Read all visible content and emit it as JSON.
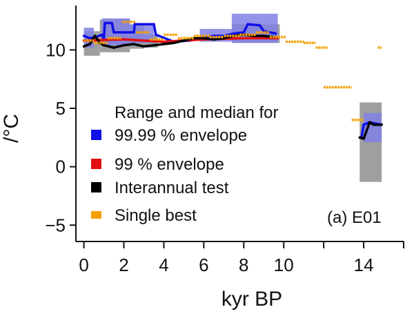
{
  "chart_data": {
    "type": "line",
    "title": "",
    "xlabel": "kyr BP",
    "ylabel": "/°C",
    "xlim": [
      -0.4,
      16.0
    ],
    "ylim": [
      -6.4,
      13.8
    ],
    "xticks": [
      0,
      2,
      4,
      6,
      8,
      10,
      14
    ],
    "xtick_labels": [
      "0",
      "2",
      "4",
      "6",
      "8",
      "10",
      "14"
    ],
    "extra_x_ticks": [
      12,
      16
    ],
    "yticks": [
      -5,
      0,
      5,
      10
    ],
    "ytick_labels": [
      "−5",
      "0",
      "5",
      "10"
    ],
    "panel_label": "(a) E01",
    "legend": {
      "title": "Range and median for",
      "placement": "lower-left",
      "entries": [
        {
          "label": "99.99 % envelope",
          "color": "#1010e8"
        },
        {
          "label": "99 % envelope",
          "color": "#e01010"
        },
        {
          "label": "Interannual test",
          "color": "#000000"
        },
        {
          "label": "Single best",
          "color": "#f5a000"
        }
      ]
    },
    "range_bands": [
      {
        "series": "Interannual test",
        "color": "#9a9a9a",
        "x0": 0.0,
        "x1": 0.8,
        "lo": 9.5,
        "hi": 11.6
      },
      {
        "series": "Interannual test",
        "color": "#9a9a9a",
        "x0": 0.8,
        "x1": 2.3,
        "lo": 9.8,
        "hi": 12.6
      },
      {
        "series": "Interannual test",
        "color": "#9a9a9a",
        "x0": 2.3,
        "x1": 3.0,
        "lo": 10.1,
        "hi": 12.1
      },
      {
        "series": "Interannual test",
        "color": "#9a9a9a",
        "x0": 3.0,
        "x1": 3.7,
        "lo": 10.2,
        "hi": 11.3
      },
      {
        "series": "Interannual test",
        "color": "#9a9a9a",
        "x0": 7.4,
        "x1": 9.8,
        "lo": 10.6,
        "hi": 12.2
      },
      {
        "series": "Interannual test",
        "color": "#9a9a9a",
        "x0": 13.8,
        "x1": 14.9,
        "lo": -1.3,
        "hi": 5.5
      },
      {
        "series": "99.99 % envelope",
        "color": "#8080e6",
        "x0": 0.0,
        "x1": 0.5,
        "lo": 10.2,
        "hi": 11.9
      },
      {
        "series": "99.99 % envelope",
        "color": "#8080e6",
        "x0": 0.9,
        "x1": 2.3,
        "lo": 10.4,
        "hi": 12.7
      },
      {
        "series": "99.99 % envelope",
        "color": "#8080e6",
        "x0": 2.3,
        "x1": 3.5,
        "lo": 10.6,
        "hi": 12.2
      },
      {
        "series": "99.99 % envelope",
        "color": "#8080e6",
        "x0": 5.8,
        "x1": 7.4,
        "lo": 10.7,
        "hi": 11.8
      },
      {
        "series": "99.99 % envelope",
        "color": "#8080e6",
        "x0": 7.4,
        "x1": 9.7,
        "lo": 10.6,
        "hi": 13.1
      },
      {
        "series": "99.99 % envelope",
        "color": "#8080e6",
        "x0": 14.0,
        "x1": 14.9,
        "lo": 2.1,
        "hi": 4.6
      }
    ],
    "series": [
      {
        "name": "99.99 % envelope",
        "color": "#1010e8",
        "points": [
          [
            0.0,
            11.2
          ],
          [
            0.3,
            11.0
          ],
          [
            0.6,
            11.1
          ],
          [
            0.9,
            11.3
          ],
          [
            1.0,
            10.9
          ],
          [
            1.05,
            12.3
          ],
          [
            1.4,
            12.3
          ],
          [
            1.5,
            11.5
          ],
          [
            2.0,
            11.5
          ],
          [
            2.5,
            11.5
          ],
          [
            2.55,
            12.2
          ],
          [
            3.5,
            12.2
          ],
          [
            3.6,
            11.3
          ],
          [
            4.5,
            10.7
          ],
          [
            5.3,
            10.8
          ],
          [
            5.9,
            11.0
          ],
          [
            6.5,
            11.2
          ],
          [
            7.0,
            11.2
          ],
          [
            7.5,
            11.4
          ],
          [
            8.0,
            11.5
          ],
          [
            8.2,
            12.2
          ],
          [
            8.8,
            12.1
          ],
          [
            9.0,
            11.6
          ],
          [
            9.6,
            11.4
          ],
          [
            13.9,
            2.6
          ],
          [
            14.0,
            3.6
          ],
          [
            14.3,
            3.8
          ],
          [
            14.9,
            3.6
          ]
        ]
      },
      {
        "name": "99 % envelope",
        "color": "#e01010",
        "points": [
          [
            0.0,
            10.8
          ],
          [
            2.0,
            10.9
          ],
          [
            4.0,
            10.7
          ],
          [
            6.0,
            10.9
          ],
          [
            8.0,
            11.0
          ],
          [
            9.7,
            11.0
          ]
        ]
      },
      {
        "name": "Interannual test",
        "color": "#000000",
        "points": [
          [
            0.0,
            10.3
          ],
          [
            0.3,
            10.5
          ],
          [
            0.55,
            11.2
          ],
          [
            0.8,
            10.6
          ],
          [
            1.0,
            10.4
          ],
          [
            1.5,
            10.2
          ],
          [
            2.0,
            10.4
          ],
          [
            2.5,
            10.5
          ],
          [
            3.0,
            10.3
          ],
          [
            3.5,
            10.4
          ],
          [
            4.0,
            10.5
          ],
          [
            4.5,
            10.6
          ],
          [
            5.0,
            10.8
          ],
          [
            5.5,
            11.0
          ],
          [
            6.0,
            11.0
          ],
          [
            6.5,
            10.9
          ],
          [
            7.0,
            11.0
          ],
          [
            7.5,
            11.2
          ],
          [
            8.0,
            11.3
          ],
          [
            8.5,
            11.2
          ],
          [
            9.0,
            11.2
          ],
          [
            9.5,
            11.1
          ],
          [
            13.8,
            2.5
          ],
          [
            14.0,
            2.4
          ],
          [
            14.3,
            3.8
          ],
          [
            14.5,
            3.6
          ],
          [
            14.9,
            3.6
          ]
        ]
      },
      {
        "name": "Single best",
        "color": "#f5a000",
        "segments": [
          [
            0.0,
            0.5,
            10.8
          ],
          [
            0.5,
            1.2,
            10.6
          ],
          [
            1.2,
            1.9,
            11.0
          ],
          [
            1.9,
            2.6,
            12.4
          ],
          [
            2.6,
            3.3,
            11.5
          ],
          [
            3.3,
            4.0,
            10.9
          ],
          [
            4.0,
            4.7,
            11.3
          ],
          [
            4.7,
            5.5,
            11.0
          ],
          [
            5.5,
            6.3,
            11.2
          ],
          [
            6.3,
            7.0,
            11.1
          ],
          [
            7.0,
            7.8,
            11.2
          ],
          [
            7.8,
            8.6,
            11.3
          ],
          [
            8.6,
            9.3,
            11.5
          ],
          [
            9.3,
            10.1,
            11.1
          ],
          [
            10.1,
            11.0,
            10.7
          ],
          [
            11.0,
            11.6,
            10.6
          ],
          [
            11.6,
            12.2,
            10.2
          ],
          [
            12.0,
            13.4,
            6.8
          ],
          [
            13.4,
            14.0,
            4.0
          ],
          [
            14.7,
            14.9,
            10.2
          ]
        ]
      }
    ]
  }
}
